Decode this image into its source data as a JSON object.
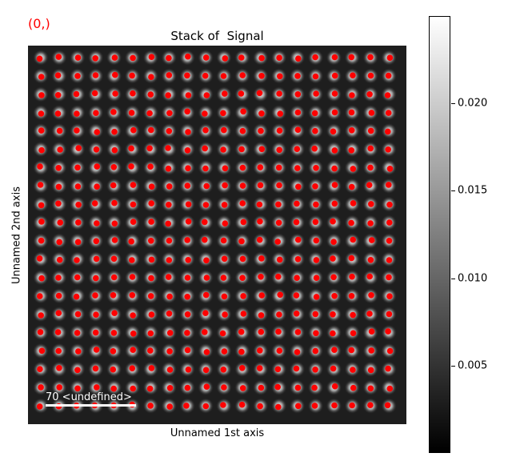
{
  "figure": {
    "corner_label": "(0,)",
    "title": "Stack of  Signal",
    "xlabel": "Unnamed 1st axis",
    "ylabel": "Unnamed 2nd axis",
    "scalebar_label": "70 <undefined>"
  },
  "colors": {
    "marker": "#ff0000",
    "corner_label": "#ff0000",
    "colormap": "gray"
  },
  "chart_data": {
    "type": "heatmap",
    "grid": {
      "rows": 20,
      "cols": 20
    },
    "colorbar": {
      "range": [
        0,
        0.025
      ],
      "ticks": [
        0.005,
        0.01,
        0.015,
        0.02
      ],
      "tick_labels": [
        "0.005",
        "0.010",
        "0.015",
        "0.020"
      ]
    }
  }
}
